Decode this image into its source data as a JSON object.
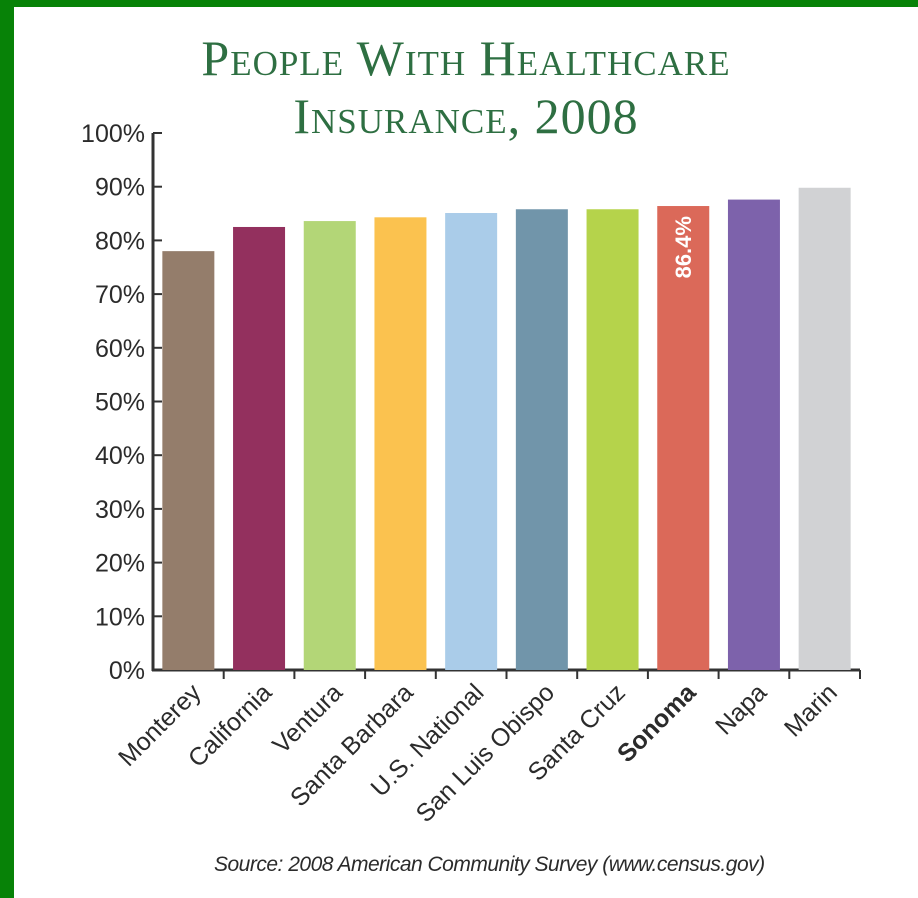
{
  "chart_data": {
    "type": "bar",
    "title_line1": "People With Healthcare",
    "title_line2": "Insurance, 2008",
    "categories": [
      "Monterey",
      "California",
      "Ventura",
      "Santa Barbara",
      "U.S. National",
      "San Luis Obispo",
      "Santa Cruz",
      "Sonoma",
      "Napa",
      "Marin"
    ],
    "values": [
      78.0,
      82.5,
      83.6,
      84.3,
      85.1,
      85.8,
      85.8,
      86.4,
      87.6,
      89.8
    ],
    "colors": [
      "#947d6b",
      "#93305e",
      "#b3d677",
      "#fbc24f",
      "#aacce9",
      "#7195aa",
      "#b5d34b",
      "#db6959",
      "#7d62ab",
      "#d1d2d4"
    ],
    "highlight_category": "Sonoma",
    "data_labels": [
      {
        "category": "Sonoma",
        "text": "86.4%"
      }
    ],
    "yticks": [
      "0%",
      "10%",
      "20%",
      "30%",
      "40%",
      "50%",
      "60%",
      "70%",
      "80%",
      "90%",
      "100%"
    ],
    "ylim": [
      0,
      100
    ],
    "grid": false,
    "xlabel": "",
    "ylabel": "",
    "source": "Source: 2008 American Community Survey (www.census.gov)"
  },
  "colors": {
    "background": "#078207",
    "title": "#2e6f42",
    "axis": "#333333"
  }
}
